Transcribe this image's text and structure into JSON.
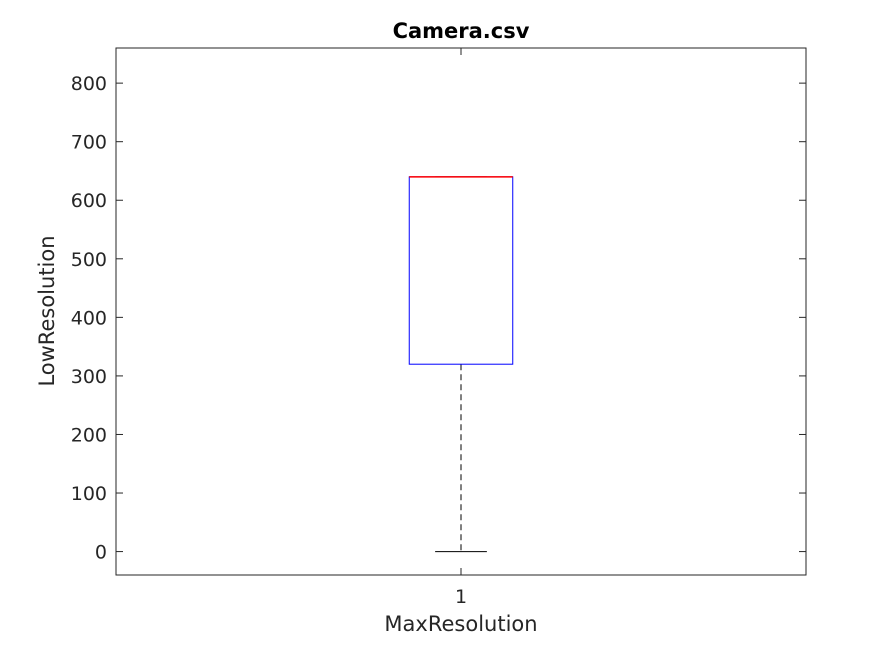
{
  "chart_data": {
    "type": "boxplot",
    "title": "Camera.csv",
    "xlabel": "MaxResolution",
    "ylabel": "LowResolution",
    "categories": [
      "1"
    ],
    "ylim": [
      -40,
      860
    ],
    "yticks": [
      0,
      100,
      200,
      300,
      400,
      500,
      600,
      700,
      800
    ],
    "ytick_labels": [
      "0",
      "100",
      "200",
      "300",
      "400",
      "500",
      "600",
      "700",
      "800"
    ],
    "boxes": [
      {
        "category": "1",
        "whisker_low": 0,
        "q1": 320,
        "median": 640,
        "q3": 640,
        "whisker_high": 640
      }
    ],
    "colors": {
      "box": "#0000ff",
      "median": "#ff0000",
      "whisker": "#000000"
    },
    "grid": false
  }
}
